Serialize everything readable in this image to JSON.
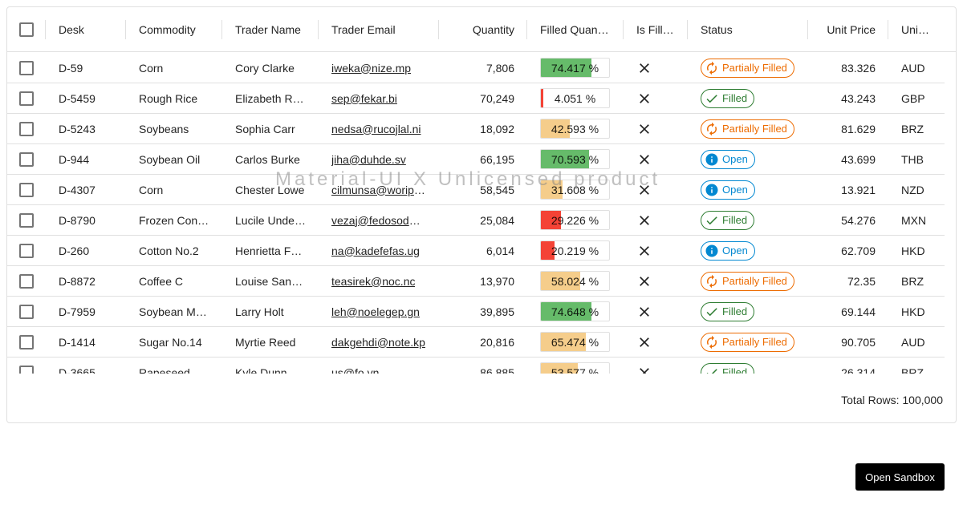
{
  "grid": {
    "columns": [
      {
        "key": "select",
        "label": ""
      },
      {
        "key": "desk",
        "label": "Desk"
      },
      {
        "key": "commodity",
        "label": "Commodity"
      },
      {
        "key": "trader_name",
        "label": "Trader Name"
      },
      {
        "key": "trader_email",
        "label": "Trader Email"
      },
      {
        "key": "quantity",
        "label": "Quantity"
      },
      {
        "key": "filled_quantity",
        "label": "Filled Quantity"
      },
      {
        "key": "is_filled",
        "label": "Is Filled"
      },
      {
        "key": "status",
        "label": "Status"
      },
      {
        "key": "unit_price",
        "label": "Unit Price"
      },
      {
        "key": "unit_price_currency",
        "label": "Unit Price Currency"
      }
    ],
    "rows": [
      {
        "desk": "D-59",
        "commodity": "Corn",
        "trader_name": "Cory Clarke",
        "trader_email": "iweka@nize.mp",
        "quantity": "7,806",
        "filled_pct": "74.417 %",
        "filled_value": 74.417,
        "filled_color": "#66bb6a",
        "status": "Partially Filled",
        "status_kind": "partial",
        "unit_price": "83.326",
        "currency": "AUD"
      },
      {
        "desk": "D-5459",
        "commodity": "Rough Rice",
        "trader_name": "Elizabeth Riley",
        "trader_email": "sep@fekar.bi",
        "quantity": "70,249",
        "filled_pct": "4.051 %",
        "filled_value": 4.051,
        "filled_color": "#f44336",
        "status": "Filled",
        "status_kind": "filled",
        "unit_price": "43.243",
        "currency": "GBP"
      },
      {
        "desk": "D-5243",
        "commodity": "Soybeans",
        "trader_name": "Sophia Carr",
        "trader_email": "nedsa@rucojlal.ni",
        "quantity": "18,092",
        "filled_pct": "42.593 %",
        "filled_value": 42.593,
        "filled_color": "#f5cd8b",
        "status": "Partially Filled",
        "status_kind": "partial",
        "unit_price": "81.629",
        "currency": "BRZ"
      },
      {
        "desk": "D-944",
        "commodity": "Soybean Oil",
        "trader_name": "Carlos Burke",
        "trader_email": "jiha@duhde.sv",
        "quantity": "66,195",
        "filled_pct": "70.593 %",
        "filled_value": 70.593,
        "filled_color": "#66bb6a",
        "status": "Open",
        "status_kind": "open",
        "unit_price": "43.699",
        "currency": "THB"
      },
      {
        "desk": "D-4307",
        "commodity": "Corn",
        "trader_name": "Chester Lowe",
        "trader_email": "cilmunsa@woripe.se",
        "quantity": "58,545",
        "filled_pct": "31.608 %",
        "filled_value": 31.608,
        "filled_color": "#f5cd8b",
        "status": "Open",
        "status_kind": "open",
        "unit_price": "13.921",
        "currency": "NZD"
      },
      {
        "desk": "D-8790",
        "commodity": "Frozen Concentrated Orange Juice",
        "trader_name": "Lucile Underwood",
        "trader_email": "vezaj@fedosodeg.cl",
        "quantity": "25,084",
        "filled_pct": "29.226 %",
        "filled_value": 29.226,
        "filled_color": "#f44336",
        "status": "Filled",
        "status_kind": "filled",
        "unit_price": "54.276",
        "currency": "MXN"
      },
      {
        "desk": "D-260",
        "commodity": "Cotton No.2",
        "trader_name": "Henrietta Ferguson",
        "trader_email": "na@kadefefas.ug",
        "quantity": "6,014",
        "filled_pct": "20.219 %",
        "filled_value": 20.219,
        "filled_color": "#f44336",
        "status": "Open",
        "status_kind": "open",
        "unit_price": "62.709",
        "currency": "HKD"
      },
      {
        "desk": "D-8872",
        "commodity": "Coffee C",
        "trader_name": "Louise Sanders",
        "trader_email": "teasirek@noc.nc",
        "quantity": "13,970",
        "filled_pct": "58.024 %",
        "filled_value": 58.024,
        "filled_color": "#f5cd8b",
        "status": "Partially Filled",
        "status_kind": "partial",
        "unit_price": "72.35",
        "currency": "BRZ"
      },
      {
        "desk": "D-7959",
        "commodity": "Soybean Meal",
        "trader_name": "Larry Holt",
        "trader_email": "leh@noelegep.gn",
        "quantity": "39,895",
        "filled_pct": "74.648 %",
        "filled_value": 74.648,
        "filled_color": "#66bb6a",
        "status": "Filled",
        "status_kind": "filled",
        "unit_price": "69.144",
        "currency": "HKD"
      },
      {
        "desk": "D-1414",
        "commodity": "Sugar No.14",
        "trader_name": "Myrtie Reed",
        "trader_email": "dakgehdi@note.kp",
        "quantity": "20,816",
        "filled_pct": "65.474 %",
        "filled_value": 65.474,
        "filled_color": "#f5cd8b",
        "status": "Partially Filled",
        "status_kind": "partial",
        "unit_price": "90.705",
        "currency": "AUD"
      },
      {
        "desk": "D-3665",
        "commodity": "Rapeseed",
        "trader_name": "Kyle Dunn",
        "trader_email": "us@fo.vn",
        "quantity": "86,885",
        "filled_pct": "53.577 %",
        "filled_value": 53.577,
        "filled_color": "#f5cd8b",
        "status": "Filled",
        "status_kind": "filled",
        "unit_price": "26.314",
        "currency": "BRZ"
      }
    ],
    "footer": {
      "total_rows": "Total Rows: 100,000"
    }
  },
  "watermark": "Material-UI X Unlicensed product",
  "sandbox_button": "Open Sandbox",
  "icons": {
    "is_filled": "close-icon",
    "partial": "autorenew-icon",
    "filled": "check-icon",
    "open": "info-icon"
  },
  "colors": {
    "partial": "#ed6c02",
    "filled": "#2e7d32",
    "open": "#0288d1"
  }
}
